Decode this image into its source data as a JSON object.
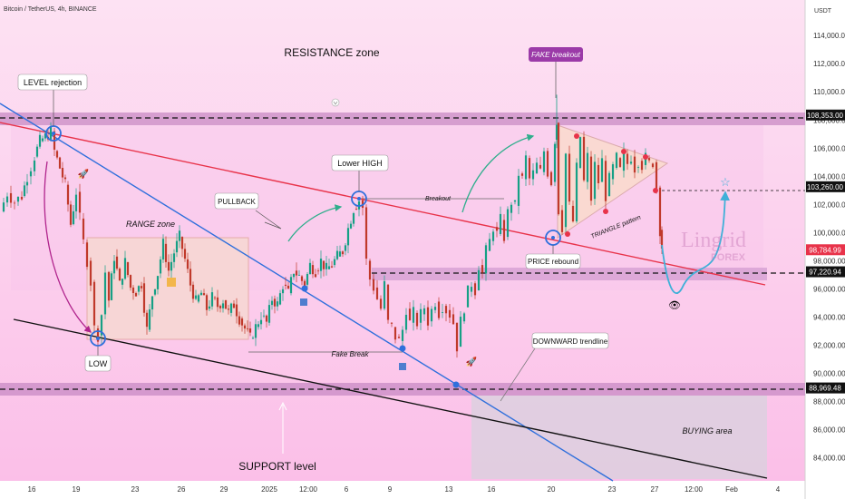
{
  "header": {
    "symbol": "Bitcoin / TetherUS, 4h, BINANCE",
    "currency": "USDT"
  },
  "chart_data": {
    "type": "candlestick",
    "ylim": [
      82500,
      116200
    ],
    "y_ticks": [
      114000,
      112000,
      110000,
      108000,
      106000,
      104000,
      102000,
      100000,
      98000,
      96000,
      94000,
      92000,
      90000,
      88000,
      86000,
      84000
    ],
    "y_tick_labels": [
      "114,000.00",
      "112,000.00",
      "110,000.00",
      "108,000.00",
      "106,000.00",
      "104,000.00",
      "102,000.00",
      "100,000.00",
      "98,000.00",
      "96,000.00",
      "94,000.00",
      "92,000.00",
      "90,000.00",
      "88,000.00",
      "86,000.00",
      "84,000.00"
    ],
    "x_ticks": [
      "16",
      "19",
      "23",
      "26",
      "29",
      "2025",
      "12:00",
      "6",
      "9",
      "13",
      "16",
      "20",
      "23",
      "27",
      "12:00",
      "Feb",
      "4"
    ],
    "price_tags": [
      {
        "value": 108353,
        "label": "108,353.00",
        "color": "#111111"
      },
      {
        "value": 103260,
        "label": "103,260.00",
        "color": "#111111"
      },
      {
        "value": 98784.99,
        "label": "98,784.99",
        "color": "#e8334a"
      },
      {
        "value": 97220.94,
        "label": "97,220.94",
        "color": "#111111"
      },
      {
        "value": 88969.48,
        "label": "88,969.48",
        "color": "#111111"
      }
    ],
    "path": [
      [
        0,
        101500
      ],
      [
        8,
        102800
      ],
      [
        16,
        102200
      ],
      [
        24,
        102600
      ],
      [
        30,
        104000
      ],
      [
        38,
        105400
      ],
      [
        44,
        106500
      ],
      [
        50,
        106800
      ],
      [
        56,
        107200
      ],
      [
        60,
        105800
      ],
      [
        66,
        104600
      ],
      [
        72,
        103400
      ],
      [
        78,
        100600
      ],
      [
        84,
        102900
      ],
      [
        88,
        101000
      ],
      [
        92,
        99300
      ],
      [
        96,
        98000
      ],
      [
        100,
        96500
      ],
      [
        104,
        93200
      ],
      [
        108,
        92700
      ],
      [
        112,
        94200
      ],
      [
        116,
        97200
      ],
      [
        120,
        95200
      ],
      [
        126,
        98300
      ],
      [
        132,
        96300
      ],
      [
        138,
        97900
      ],
      [
        144,
        96100
      ],
      [
        150,
        95800
      ],
      [
        156,
        96400
      ],
      [
        162,
        93100
      ],
      [
        168,
        95600
      ],
      [
        174,
        97100
      ],
      [
        180,
        99200
      ],
      [
        186,
        97300
      ],
      [
        192,
        98600
      ],
      [
        198,
        99700
      ],
      [
        204,
        98100
      ],
      [
        210,
        96300
      ],
      [
        216,
        95100
      ],
      [
        222,
        95700
      ],
      [
        228,
        94600
      ],
      [
        234,
        95400
      ],
      [
        240,
        94800
      ],
      [
        246,
        95200
      ],
      [
        252,
        94300
      ],
      [
        258,
        94900
      ],
      [
        264,
        93900
      ],
      [
        270,
        93200
      ],
      [
        276,
        92500
      ],
      [
        282,
        93300
      ],
      [
        288,
        94100
      ],
      [
        294,
        93600
      ],
      [
        300,
        95300
      ],
      [
        306,
        94900
      ],
      [
        312,
        96300
      ],
      [
        318,
        95700
      ],
      [
        324,
        97300
      ],
      [
        330,
        96900
      ],
      [
        336,
        96300
      ],
      [
        342,
        97700
      ],
      [
        348,
        97300
      ],
      [
        354,
        98000
      ],
      [
        360,
        97400
      ],
      [
        366,
        97700
      ],
      [
        372,
        98300
      ],
      [
        378,
        98700
      ],
      [
        384,
        100300
      ],
      [
        390,
        101700
      ],
      [
        396,
        102300
      ],
      [
        400,
        101800
      ],
      [
        404,
        98000
      ],
      [
        408,
        96700
      ],
      [
        412,
        96100
      ],
      [
        416,
        95300
      ],
      [
        420,
        94600
      ],
      [
        424,
        96300
      ],
      [
        428,
        93600
      ],
      [
        432,
        93300
      ],
      [
        436,
        92600
      ],
      [
        440,
        92300
      ],
      [
        444,
        93100
      ],
      [
        448,
        94600
      ],
      [
        452,
        93600
      ],
      [
        456,
        94300
      ],
      [
        460,
        93600
      ],
      [
        464,
        94200
      ],
      [
        468,
        94700
      ],
      [
        472,
        93700
      ],
      [
        476,
        94500
      ],
      [
        480,
        95100
      ],
      [
        484,
        94300
      ],
      [
        488,
        94800
      ],
      [
        492,
        94500
      ],
      [
        496,
        94200
      ],
      [
        500,
        93600
      ],
      [
        504,
        91900
      ],
      [
        508,
        93700
      ],
      [
        512,
        94700
      ],
      [
        516,
        95800
      ],
      [
        520,
        96400
      ],
      [
        524,
        95900
      ],
      [
        528,
        97700
      ],
      [
        532,
        97100
      ],
      [
        536,
        98700
      ],
      [
        540,
        99400
      ],
      [
        544,
        100400
      ],
      [
        548,
        99900
      ],
      [
        552,
        100900
      ],
      [
        556,
        99700
      ],
      [
        560,
        101400
      ],
      [
        564,
        102200
      ],
      [
        568,
        101900
      ],
      [
        572,
        104200
      ],
      [
        576,
        103800
      ],
      [
        580,
        105300
      ],
      [
        584,
        103800
      ],
      [
        588,
        104200
      ],
      [
        592,
        104800
      ],
      [
        596,
        104300
      ],
      [
        600,
        105800
      ],
      [
        604,
        104300
      ],
      [
        608,
        103600
      ],
      [
        612,
        106600
      ],
      [
        614,
        107800
      ],
      [
        616,
        101600
      ],
      [
        620,
        100400
      ],
      [
        624,
        105600
      ],
      [
        628,
        101900
      ],
      [
        632,
        100800
      ],
      [
        636,
        104600
      ],
      [
        640,
        106800
      ],
      [
        644,
        103600
      ],
      [
        648,
        105400
      ],
      [
        652,
        102400
      ],
      [
        656,
        104800
      ],
      [
        660,
        103600
      ],
      [
        664,
        105100
      ],
      [
        668,
        102600
      ],
      [
        672,
        103800
      ],
      [
        676,
        104600
      ],
      [
        680,
        105300
      ],
      [
        684,
        104400
      ],
      [
        688,
        105600
      ],
      [
        692,
        104900
      ],
      [
        696,
        105400
      ],
      [
        700,
        104600
      ],
      [
        704,
        105100
      ],
      [
        708,
        104800
      ],
      [
        712,
        105300
      ],
      [
        716,
        104900
      ],
      [
        720,
        105000
      ],
      [
        724,
        103200
      ],
      [
        728,
        100200
      ],
      [
        730,
        99000
      ]
    ]
  },
  "annotations": {
    "resistance_zone": "RESISTANCE zone",
    "fake_breakout": "FAKE breakout",
    "level_rejection": "LEVEL rejection",
    "range_zone": "RANGE zone",
    "pullback": "PULLBACK",
    "lower_high": "Lower HIGH",
    "breakout": "Breakout",
    "triangle_pattern": "TRIANGLE pattern",
    "price_rebound": "PRICE rebound",
    "fake_break": "Fake Break",
    "downward_trendline": "DOWNWARD trendline",
    "low": "LOW",
    "buying_area": "BUYING area",
    "support_level": "SUPPORT level"
  },
  "watermark": {
    "brand": "Lingrid",
    "sub": "FOREX"
  },
  "colors": {
    "up": "#16a085",
    "down": "#c0392b",
    "red_line": "#e8334a",
    "blue_line": "#2f6fdc",
    "arrow": "#2fae8c",
    "projection": "#3fb0d8"
  }
}
